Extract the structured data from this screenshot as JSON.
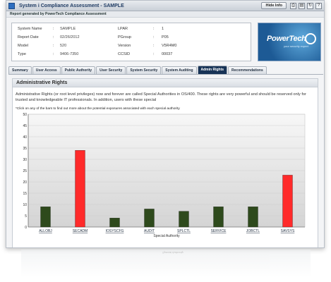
{
  "window": {
    "title": "System i Compliance Assessment - SAMPLE",
    "hide_info": "Hide Info",
    "toolbar_icons": [
      "print-icon",
      "save-icon",
      "refresh-icon",
      "help-icon"
    ]
  },
  "report_line": "Report generated by PowerTech Compliance Assessment",
  "system_info": {
    "left": [
      {
        "label": "System Name",
        "value": "SAMPLE"
      },
      {
        "label": "Report Date",
        "value": "02/26/2012"
      },
      {
        "label": "Model",
        "value": "520"
      },
      {
        "label": "Type",
        "value": "9406-7350"
      }
    ],
    "right": [
      {
        "label": "LPAR",
        "value": "1"
      },
      {
        "label": "PGroup",
        "value": "P05"
      },
      {
        "label": "Version",
        "value": "V5R4M0"
      },
      {
        "label": "CCSID",
        "value": "00037"
      }
    ]
  },
  "logo": {
    "brand": "PowerTech",
    "tagline": "your security expert"
  },
  "tabs": [
    "Summary",
    "User Access",
    "Public Authority",
    "User Security",
    "System Security",
    "System Auditing",
    "Admin Rights",
    "Recommendations"
  ],
  "active_tab": "Admin Rights",
  "section": {
    "title": "Administrative Rights",
    "description": "Administrative Rights (or root level privileges) now and forever are called Special Authorities in OS/400. These rights are very powerful and should be reserved only for trusted and knowledgeable IT professionals. In addition, users with these special",
    "note": "*Click on any of the bars to find out more about the potential exposures associated with each special authority"
  },
  "colors": {
    "green": "#2e4a1c",
    "red": "#ff2a2a",
    "tab_active": "#173356"
  },
  "chart_data": {
    "type": "bar",
    "xlabel": "Special Authority",
    "categories": [
      "ALLOBJ",
      "SECADM",
      "IOSYSCFG",
      "AUDIT",
      "SPLCTL",
      "SERVICE",
      "JOBCTL",
      "SAVSYS"
    ],
    "values": [
      9,
      34,
      4,
      8,
      7,
      9,
      9,
      23
    ],
    "colors": [
      "#2e4a1c",
      "#ff2a2a",
      "#2e4a1c",
      "#2e4a1c",
      "#2e4a1c",
      "#2e4a1c",
      "#2e4a1c",
      "#ff2a2a"
    ],
    "ylim": [
      0,
      50
    ],
    "yticks": [
      0,
      5,
      10,
      15,
      20,
      25,
      30,
      35,
      40,
      45,
      50
    ],
    "grid": true
  }
}
